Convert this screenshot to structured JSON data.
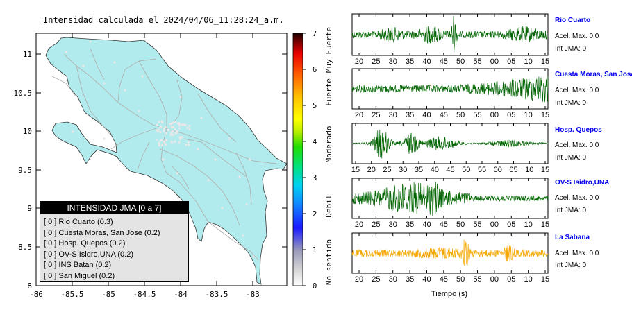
{
  "map": {
    "title": "Intensidad calculada el 2024/04/06_11:28:24_a.m.",
    "x_ticks": [
      "-86",
      "-85.5",
      "-85",
      "-84.5",
      "-84",
      "-83.5",
      "-83"
    ],
    "y_ticks": [
      "11",
      "10.5",
      "10",
      "9.5",
      "9",
      "8.5",
      "8"
    ],
    "fill_color": "#b2ebed",
    "road_color": "#b0b0b0"
  },
  "colorbar": {
    "ticks": [
      "7",
      "6",
      "5",
      "4",
      "3",
      "2",
      "1",
      "0"
    ],
    "labels": [
      "Muy Fuerte",
      "Fuerte",
      "Moderado",
      "Debil",
      "No sentido"
    ]
  },
  "legend": {
    "header": "INTENSIDAD JMA [0 a 7]",
    "items": [
      "[ 0 ] Rio Cuarto (0.3)",
      "[ 0 ] Cuesta Moras, San Jose (0.2)",
      "[ 0 ] Hosp. Quepos (0.2)",
      "[ 0 ] OV-S Isidro,UNA (0.2)",
      "[ 0 ] INS Batan (0.2)",
      "[ 0 ] San Miguel (0.2)"
    ]
  },
  "seismograms": [
    {
      "name": "Rio Cuarto",
      "acel": "Acel. Max. 0.0",
      "int": "Int JMA: 0",
      "ticks": [
        "20",
        "25",
        "30",
        "35",
        "40",
        "45",
        "50",
        "55",
        "00",
        "05",
        "10",
        "15"
      ],
      "color": "#006400"
    },
    {
      "name": "Cuesta Moras, San Jose",
      "acel": "Acel. Max. 0.0",
      "int": "Int JMA: 0",
      "ticks": [
        "20",
        "25",
        "30",
        "35",
        "40",
        "45",
        "50",
        "55",
        "00",
        "05",
        "10",
        "15"
      ],
      "color": "#006400"
    },
    {
      "name": "Hosp. Quepos",
      "acel": "Acel. Max. 0.0",
      "int": "Int JMA: 0",
      "ticks": [
        "15",
        "20",
        "25",
        "30",
        "35",
        "40",
        "45",
        "50",
        "55",
        "00",
        "05",
        "10",
        "15"
      ],
      "color": "#006400"
    },
    {
      "name": "OV-S Isidro,UNA",
      "acel": "Acel. Max. 0.0",
      "int": "Int JMA: 0",
      "ticks": [
        "20",
        "25",
        "30",
        "35",
        "40",
        "45",
        "50",
        "55",
        "00",
        "05",
        "10",
        "15"
      ],
      "color": "#006400"
    },
    {
      "name": "La Sabana",
      "acel": "Acel. Max. 0.0",
      "int": "Int JMA: 0",
      "ticks": [
        "20",
        "25",
        "30",
        "35",
        "40",
        "45",
        "50",
        "55",
        "00",
        "05",
        "10",
        "15"
      ],
      "color": "#f5a800"
    }
  ],
  "time_axis_label": "Tiempo (s)"
}
